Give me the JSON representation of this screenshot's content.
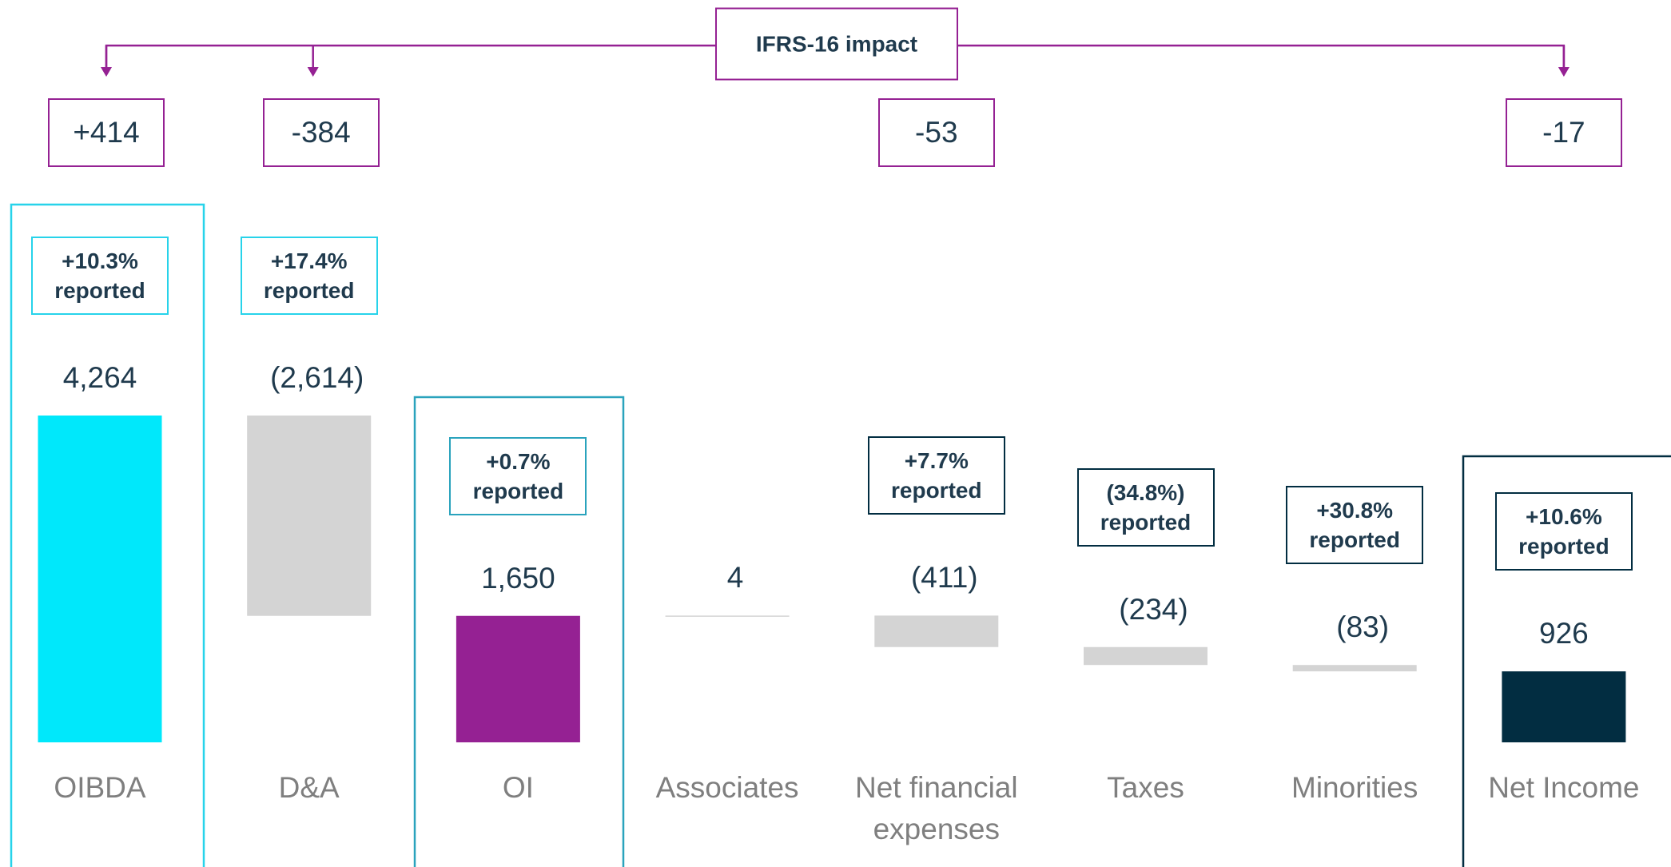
{
  "chart_data": {
    "type": "waterfall",
    "categories": [
      "OIBDA",
      "D&A",
      "OI",
      "Associates",
      "Net financial expenses",
      "Taxes",
      "Minorities",
      "Net Income"
    ],
    "values": [
      4264,
      -2614,
      1650,
      4,
      -411,
      -234,
      -83,
      926
    ],
    "value_labels": [
      "4,264",
      "(2,614)",
      "1,650",
      "4",
      "(411)",
      "(234)",
      "(83)",
      "926"
    ],
    "measure": [
      "total",
      "relative",
      "total",
      "relative",
      "relative",
      "relative",
      "relative",
      "total"
    ],
    "colors": [
      "#00e8fb",
      "#d4d4d4",
      "#952193",
      "#d4d4d4",
      "#d4d4d4",
      "#d4d4d4",
      "#d4d4d4",
      "#022d41"
    ],
    "growth_values": [
      10.3,
      17.4,
      0.7,
      null,
      7.7,
      -34.8,
      30.8,
      10.6
    ],
    "growth_labels": [
      "+10.3% reported",
      "+17.4% reported",
      "+0.7% reported",
      null,
      "+7.7% reported",
      "(34.8%) reported",
      "+30.8% reported",
      "+10.6% reported"
    ],
    "growth_box_colors": [
      "#27d3ea",
      "#27d3ea",
      "#2aa3bd",
      null,
      "#022d41",
      "#022d41",
      "#022d41",
      "#022d41"
    ],
    "impact_title": "IFRS-16 impact",
    "impact_values": [
      414,
      -384,
      null,
      null,
      -53,
      null,
      null,
      -17
    ],
    "impact_labels": [
      "+414",
      "-384",
      null,
      null,
      "-53",
      null,
      null,
      "-17"
    ],
    "impact_color": "#952193"
  }
}
